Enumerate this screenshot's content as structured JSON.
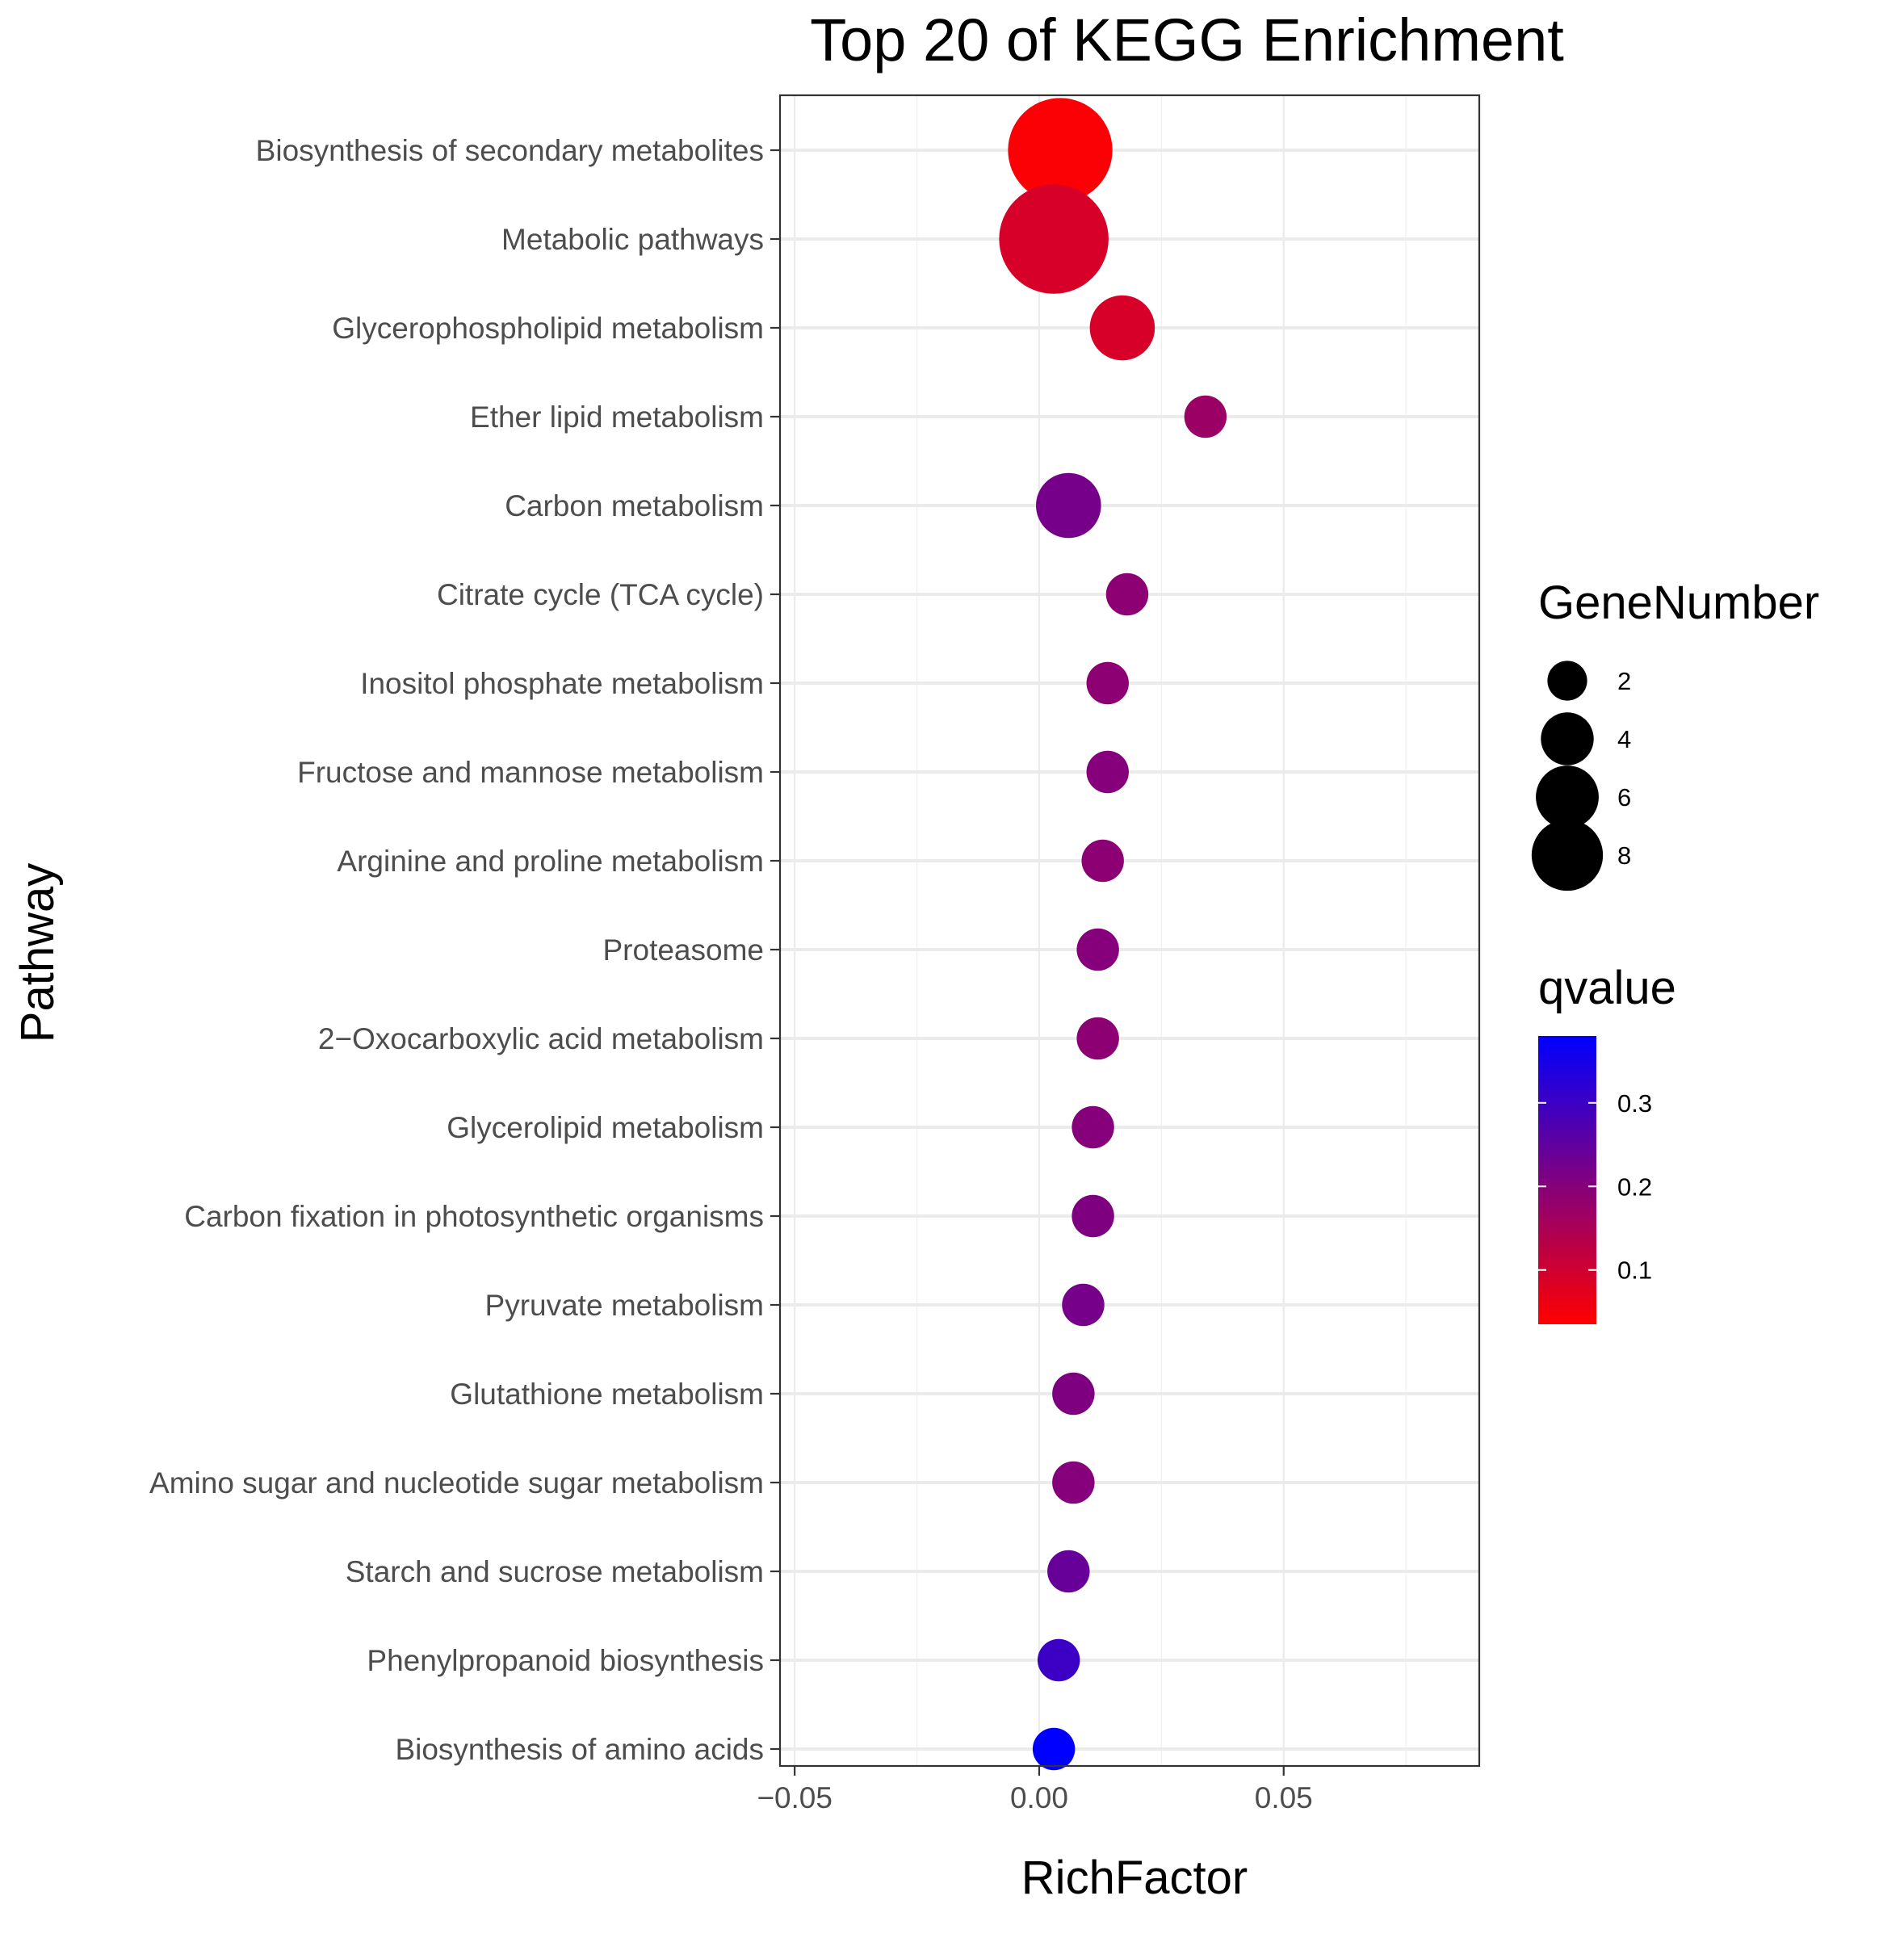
{
  "chart_data": {
    "type": "scatter",
    "title": "Top 20 of KEGG Enrichment",
    "xlabel": "RichFactor",
    "ylabel": "Pathway",
    "xlim": [
      -0.053,
      0.09
    ],
    "xticks": [
      -0.05,
      0.0,
      0.05
    ],
    "xtick_labels": [
      "−0.05",
      "0.00",
      "0.05"
    ],
    "grid": true,
    "legend_position": "right",
    "size_legend": {
      "title": "GeneNumber",
      "values": [
        2,
        4,
        6,
        8
      ],
      "labels": [
        "2",
        "4",
        "6",
        "8"
      ]
    },
    "color_legend": {
      "title": "qvalue",
      "low_color": "#ff0000",
      "high_color": "#0000ff",
      "range": [
        0.035,
        0.38
      ],
      "ticks": [
        0.1,
        0.2,
        0.3
      ],
      "tick_labels": [
        "0.1",
        "0.2",
        "0.3"
      ]
    },
    "points": [
      {
        "pathway": "Biosynthesis of secondary metabolites",
        "richfactor": 0.0043,
        "genenumber": 9,
        "qvalue": 0.04
      },
      {
        "pathway": "Metabolic pathways",
        "richfactor": 0.003,
        "genenumber": 10,
        "qvalue": 0.09
      },
      {
        "pathway": "Glycerophospholipid metabolism",
        "richfactor": 0.017,
        "genenumber": 3,
        "qvalue": 0.09
      },
      {
        "pathway": "Ether lipid metabolism",
        "richfactor": 0.034,
        "genenumber": 1,
        "qvalue": 0.17
      },
      {
        "pathway": "Carbon metabolism",
        "richfactor": 0.006,
        "genenumber": 3,
        "qvalue": 0.22
      },
      {
        "pathway": "Citrate cycle (TCA cycle)",
        "richfactor": 0.018,
        "genenumber": 1,
        "qvalue": 0.19
      },
      {
        "pathway": "Inositol phosphate metabolism",
        "richfactor": 0.014,
        "genenumber": 1,
        "qvalue": 0.19
      },
      {
        "pathway": "Fructose and mannose metabolism",
        "richfactor": 0.014,
        "genenumber": 1,
        "qvalue": 0.2
      },
      {
        "pathway": "Arginine and proline metabolism",
        "richfactor": 0.013,
        "genenumber": 1,
        "qvalue": 0.19
      },
      {
        "pathway": "Proteasome",
        "richfactor": 0.012,
        "genenumber": 1,
        "qvalue": 0.2
      },
      {
        "pathway": "2−Oxocarboxylic acid metabolism",
        "richfactor": 0.012,
        "genenumber": 1,
        "qvalue": 0.19
      },
      {
        "pathway": "Glycerolipid metabolism",
        "richfactor": 0.011,
        "genenumber": 1,
        "qvalue": 0.2
      },
      {
        "pathway": "Carbon fixation in photosynthetic organisms",
        "richfactor": 0.011,
        "genenumber": 1,
        "qvalue": 0.21
      },
      {
        "pathway": "Pyruvate metabolism",
        "richfactor": 0.009,
        "genenumber": 1,
        "qvalue": 0.22
      },
      {
        "pathway": "Glutathione metabolism",
        "richfactor": 0.007,
        "genenumber": 1,
        "qvalue": 0.21
      },
      {
        "pathway": "Amino sugar and nucleotide sugar metabolism",
        "richfactor": 0.007,
        "genenumber": 1,
        "qvalue": 0.2
      },
      {
        "pathway": "Starch and sucrose metabolism",
        "richfactor": 0.006,
        "genenumber": 1,
        "qvalue": 0.24
      },
      {
        "pathway": "Phenylpropanoid biosynthesis",
        "richfactor": 0.004,
        "genenumber": 1,
        "qvalue": 0.3
      },
      {
        "pathway": "Biosynthesis of amino acids",
        "richfactor": 0.003,
        "genenumber": 1,
        "qvalue": 0.38
      }
    ]
  }
}
